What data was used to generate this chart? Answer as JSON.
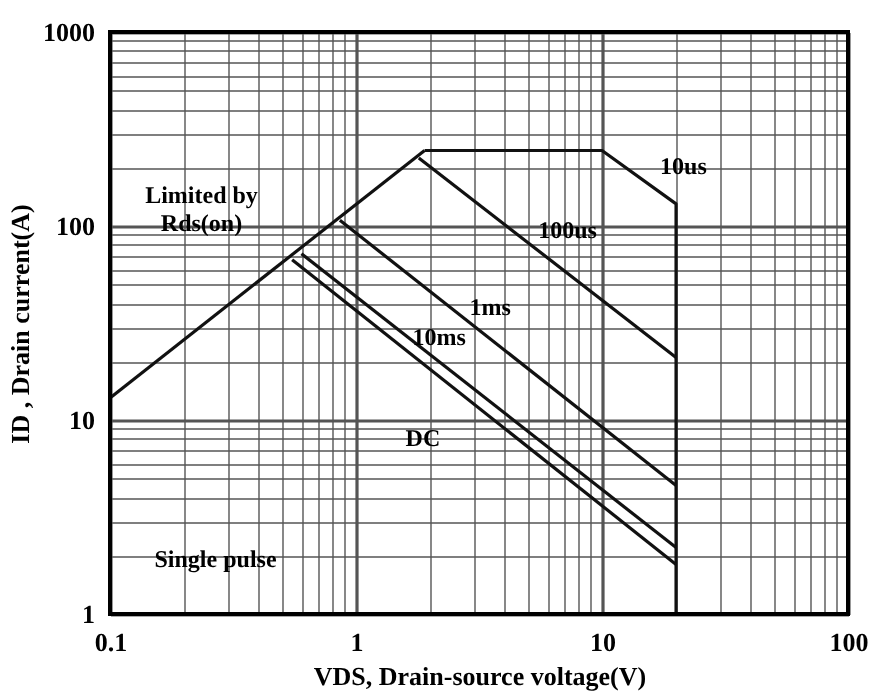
{
  "chart_data": {
    "type": "line",
    "xlabel": "VDS, Drain-source voltage(V)",
    "ylabel": "ID , Drain current(A)",
    "log": "xy",
    "xlim": [
      0.1,
      100
    ],
    "ylim": [
      1,
      1000
    ],
    "xticks": [
      0.1,
      {
        "value": 0.2,
        "label": null
      },
      {
        "value": 0.3,
        "label": null
      },
      {
        "value": 0.4,
        "label": null
      },
      {
        "value": 0.5,
        "label": null
      },
      {
        "value": 0.6,
        "label": null
      },
      {
        "value": 0.7,
        "label": null
      },
      {
        "value": 0.8,
        "label": null
      },
      {
        "value": 0.9,
        "label": null
      },
      1,
      {
        "value": 2,
        "label": null
      },
      {
        "value": 3,
        "label": null
      },
      {
        "value": 4,
        "label": null
      },
      {
        "value": 5,
        "label": null
      },
      {
        "value": 6,
        "label": null
      },
      {
        "value": 7,
        "label": null
      },
      {
        "value": 8,
        "label": null
      },
      {
        "value": 9,
        "label": null
      },
      10,
      {
        "value": 20,
        "label": null
      },
      {
        "value": 30,
        "label": null
      },
      {
        "value": 40,
        "label": null
      },
      {
        "value": 50,
        "label": null
      },
      {
        "value": 60,
        "label": null
      },
      {
        "value": 70,
        "label": null
      },
      {
        "value": 80,
        "label": null
      },
      {
        "value": 90,
        "label": null
      },
      100
    ],
    "yticks": [
      1,
      {
        "value": 2,
        "label": null
      },
      {
        "value": 3,
        "label": null
      },
      {
        "value": 4,
        "label": null
      },
      {
        "value": 5,
        "label": null
      },
      {
        "value": 6,
        "label": null
      },
      {
        "value": 7,
        "label": null
      },
      {
        "value": 8,
        "label": null
      },
      {
        "value": 9,
        "label": null
      },
      10,
      {
        "value": 20,
        "label": null
      },
      {
        "value": 30,
        "label": null
      },
      {
        "value": 40,
        "label": null
      },
      {
        "value": 50,
        "label": null
      },
      {
        "value": 60,
        "label": null
      },
      {
        "value": 70,
        "label": null
      },
      {
        "value": 80,
        "label": null
      },
      {
        "value": 90,
        "label": null
      },
      100,
      {
        "value": 200,
        "label": null
      },
      {
        "value": 300,
        "label": null
      },
      {
        "value": 400,
        "label": null
      },
      {
        "value": 500,
        "label": null
      },
      {
        "value": 600,
        "label": null
      },
      {
        "value": 700,
        "label": null
      },
      {
        "value": 800,
        "label": null
      },
      {
        "value": 900,
        "label": null
      },
      1000
    ],
    "grid": true,
    "marker": "none",
    "line_style": "solid",
    "series": [
      {
        "color": "#111111",
        "x": [
          0.1,
          1.9
        ],
        "values": [
          13,
          245
        ]
      },
      {
        "color": "#111111",
        "x": [
          1.9,
          10,
          20,
          20
        ],
        "values": [
          245,
          245,
          130,
          1
        ]
      },
      {
        "color": "#111111",
        "x": [
          1.8,
          20
        ],
        "values": [
          224,
          21
        ]
      },
      {
        "color": "#111111",
        "x": [
          0.86,
          20
        ],
        "values": [
          107,
          4.6
        ]
      },
      {
        "color": "#111111",
        "x": [
          0.6,
          20
        ],
        "values": [
          72,
          2.2
        ]
      },
      {
        "color": "#111111",
        "x": [
          0.55,
          20
        ],
        "values": [
          67,
          1.8
        ]
      }
    ],
    "annotations": [
      "Limited by\nRds(on)",
      "10us",
      "100us",
      "1ms",
      "10ms",
      "DC",
      "Single pulse"
    ]
  }
}
